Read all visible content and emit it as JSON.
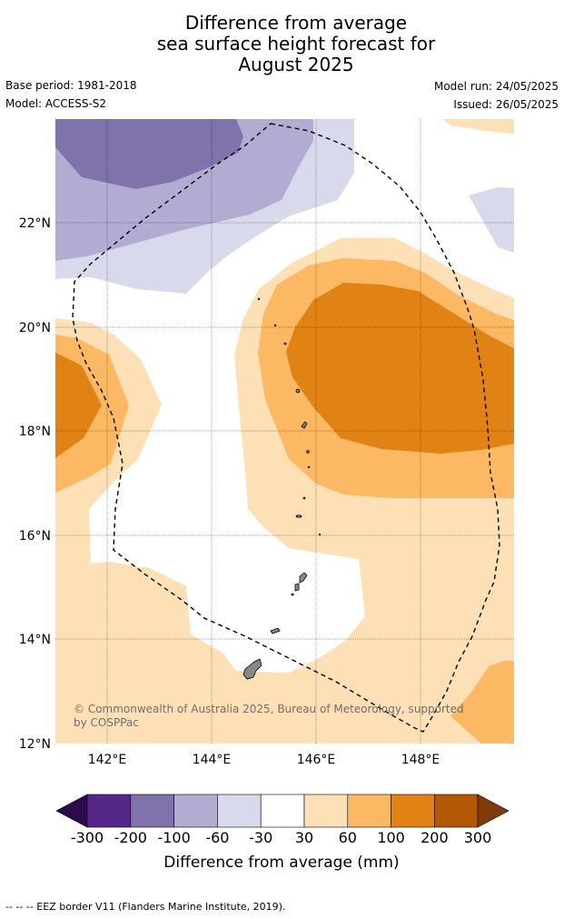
{
  "title": {
    "line1": "Difference from average",
    "line2": "sea surface height forecast for",
    "line3": "August 2025"
  },
  "meta": {
    "base_period": "Base period: 1981-2018",
    "model": "Model: ACCESS-S2",
    "model_run": "Model run: 24/05/2025",
    "issued": "Issued: 26/05/2025"
  },
  "map": {
    "lon_range": [
      141,
      149.8
    ],
    "lat_range": [
      12,
      24
    ],
    "lon_ticks": [
      "142°E",
      "144°E",
      "146°E",
      "148°E"
    ],
    "lat_ticks": [
      "12°N",
      "14°N",
      "16°N",
      "18°N",
      "20°N",
      "22°N"
    ],
    "gridlines": true,
    "copyright_line1": "© Commonwealth of Australia 2025, Bureau of Meteorology, supported",
    "copyright_line2": "by COSPPac"
  },
  "colorbar": {
    "ticks": [
      "-300",
      "-200",
      "-100",
      "-60",
      "-30",
      "30",
      "60",
      "100",
      "200",
      "300"
    ],
    "label": "Difference from average (mm)",
    "colors": {
      "below_-300": "#2d0a4e",
      "-300_-200": "#542788",
      "-200_-100": "#8073ac",
      "-100_-60": "#b2abd2",
      "-60_-30": "#d8daeb",
      "-30_30": "#ffffff",
      "30_60": "#fee0b6",
      "60_100": "#fdb863",
      "100_200": "#e08214",
      "200_300": "#b35806",
      "above_300": "#7f3b08"
    }
  },
  "footnote": "--  --  -- EEZ border V11 (Flanders Marine Institute, 2019)."
}
